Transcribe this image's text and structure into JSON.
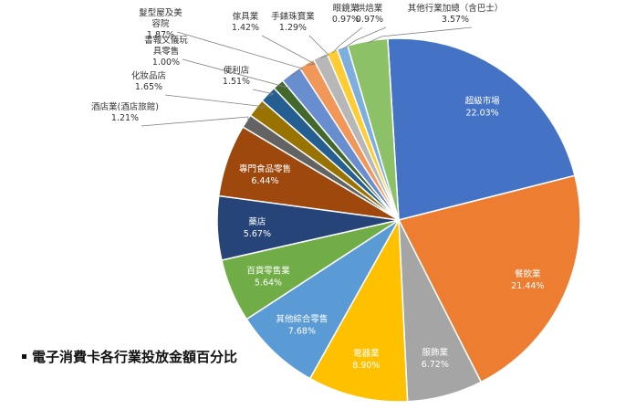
{
  "caption": "電子消費卡各行業投放金額百分比",
  "chart_data": {
    "type": "pie",
    "title": "",
    "unit": "%",
    "start_angle_deg": -3.49,
    "slices": [
      {
        "label": "超級市場",
        "value": 22.03,
        "color": "#4472c4",
        "label_pos": "inside"
      },
      {
        "label": "餐飲業",
        "value": 21.44,
        "color": "#ed7d31",
        "label_pos": "inside"
      },
      {
        "label": "服飾業",
        "value": 6.72,
        "color": "#a5a5a5",
        "label_pos": "inside"
      },
      {
        "label": "電器業",
        "value": 8.9,
        "color": "#ffc000",
        "label_pos": "inside"
      },
      {
        "label": "其他綜合零售",
        "value": 7.68,
        "color": "#5b9bd5",
        "label_pos": "inside"
      },
      {
        "label": "百貨零售業",
        "value": 5.64,
        "color": "#70ad47",
        "label_pos": "inside"
      },
      {
        "label": "藥店",
        "value": 5.67,
        "color": "#264478",
        "label_pos": "inside"
      },
      {
        "label": "專門食品零售",
        "value": 6.44,
        "color": "#9e480e",
        "label_pos": "inside"
      },
      {
        "label": "酒店業(酒店旅館)",
        "value": 1.21,
        "color": "#636363",
        "label_pos": "outside"
      },
      {
        "label": "化妝品店",
        "value": 1.65,
        "color": "#997300",
        "label_pos": "outside"
      },
      {
        "label": "便利店",
        "value": 1.51,
        "color": "#255e91",
        "label_pos": "outside"
      },
      {
        "label": "書報文儀玩具零售",
        "value": 1.0,
        "color": "#43682b",
        "label_pos": "outside"
      },
      {
        "label": "髮型屋及美容院",
        "value": 1.87,
        "color": "#698ed0",
        "label_pos": "outside"
      },
      {
        "label": "傢具業",
        "value": 1.42,
        "color": "#f1975a",
        "label_pos": "outside"
      },
      {
        "label": "手錶珠寶業",
        "value": 1.29,
        "color": "#b7b7b7",
        "label_pos": "outside"
      },
      {
        "label": "眼鏡業",
        "value": 0.97,
        "color": "#ffcd33",
        "label_pos": "outside"
      },
      {
        "label": "烘焙業",
        "value": 0.97,
        "color": "#7cafdd",
        "label_pos": "outside"
      },
      {
        "label": "其他行業加總（含巴士）",
        "value": 3.57,
        "color": "#8cc168",
        "label_pos": "outside"
      }
    ]
  }
}
